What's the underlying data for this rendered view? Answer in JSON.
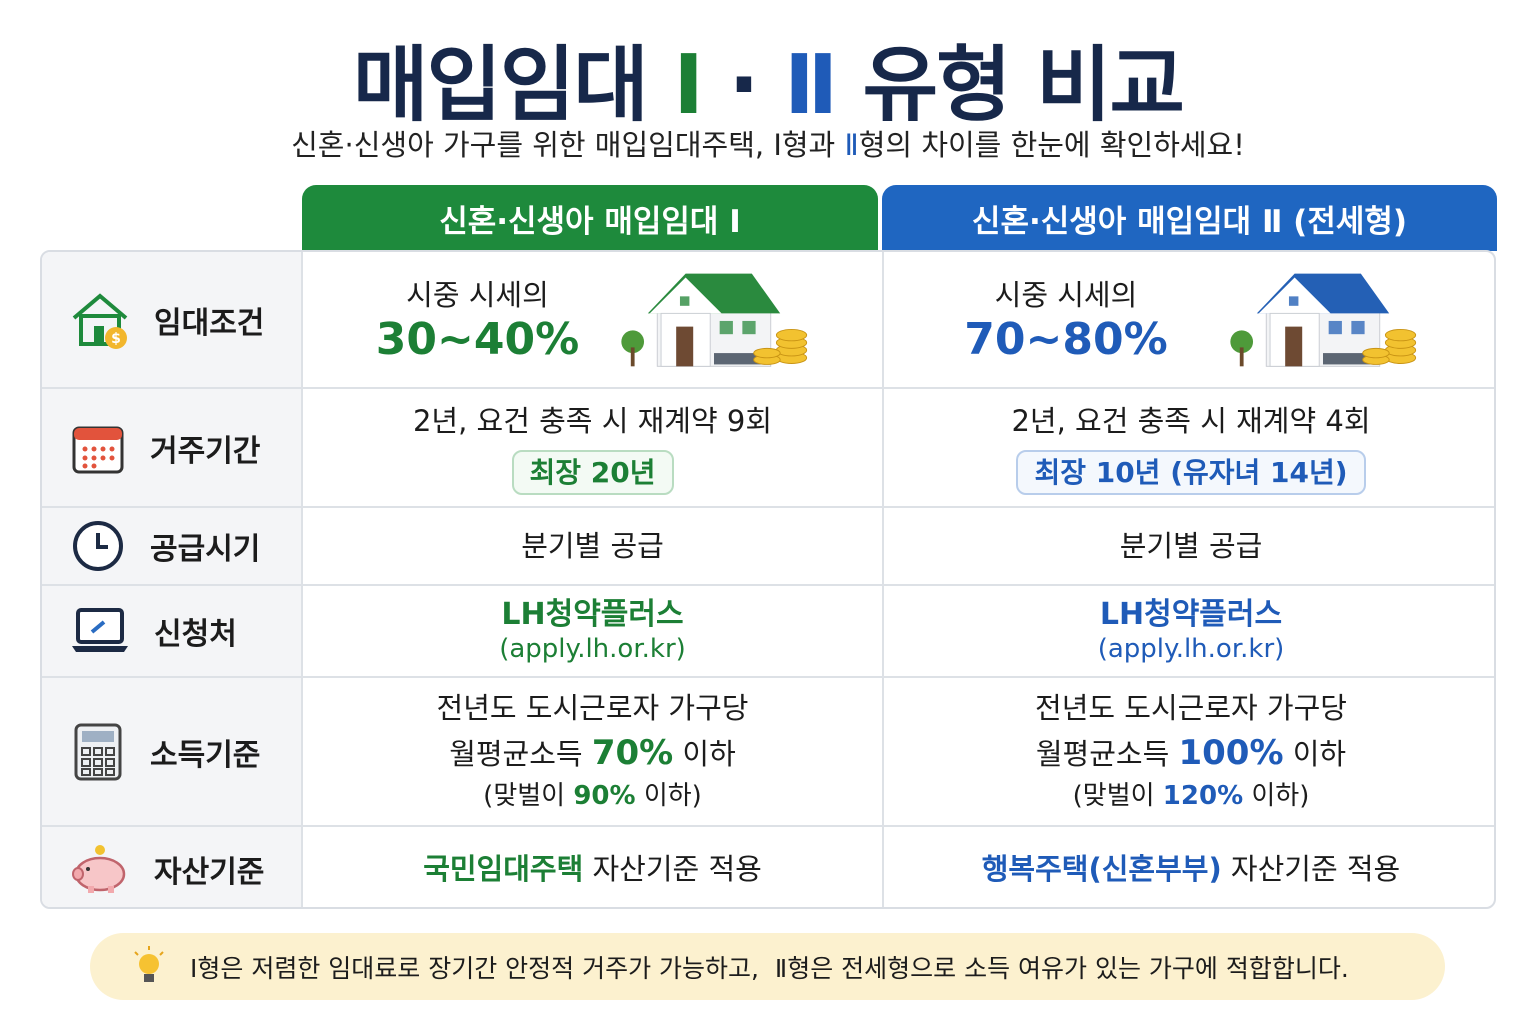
{
  "title": [
    "매입임대 ",
    "Ⅰ",
    " · ",
    "Ⅱ",
    " 유형 비교"
  ],
  "subtitle": [
    "신혼·신생아 가구를 위한 매입임대주택, Ⅰ형과 ",
    "Ⅱ",
    "형의 차이를 한눈에 확인하세요!"
  ],
  "columns": [
    "신혼·신생아 매입임대 Ⅰ",
    "신혼·신생아 매입임대 Ⅱ (전세형)"
  ],
  "rows": [
    {
      "label": "임대조건",
      "cells": [
        [
          "시중 시세의",
          "30~40%"
        ],
        [
          "시중 시세의",
          "70~80%"
        ]
      ]
    },
    {
      "label": "거주기간",
      "cells": [
        [
          "2년, 요건 충족 시 재계약 9회",
          "최장 20년"
        ],
        [
          "2년, 요건 충족 시 재계약 4회",
          "최장 10년 (유자녀 14년)"
        ]
      ]
    },
    {
      "label": "공급시기",
      "cells": [
        [
          "분기별 공급"
        ],
        [
          "분기별 공급"
        ]
      ]
    },
    {
      "label": "신청처",
      "cells": [
        [
          "LH청약플러스",
          "(apply.lh.or.kr)"
        ],
        [
          "LH청약플러스",
          "(apply.lh.or.kr)"
        ]
      ]
    },
    {
      "label": "소득기준",
      "cells": [
        [
          "전년도 도시근로자 가구당",
          [
            "월평균소득 ",
            "70%",
            " 이하"
          ],
          [
            "(맞벌이 ",
            "90%",
            " 이하)"
          ]
        ],
        [
          "전년도 도시근로자 가구당",
          [
            "월평균소득 ",
            "100%",
            " 이하"
          ],
          [
            "(맞벌이 ",
            "120%",
            " 이하)"
          ]
        ]
      ]
    },
    {
      "label": "자산기준",
      "cells": [
        [
          [
            "국민임대주택",
            " 자산기준 적용"
          ]
        ],
        [
          [
            "행복주택(신혼부부)",
            " 자산기준 적용"
          ]
        ]
      ]
    }
  ],
  "footer": "Ⅰ형은 저렴한 임대료로 장기간 안정적 거주가 가능하고,  Ⅱ형은 전세형으로 소득 여유가 있는 가구에 적합합니다."
}
